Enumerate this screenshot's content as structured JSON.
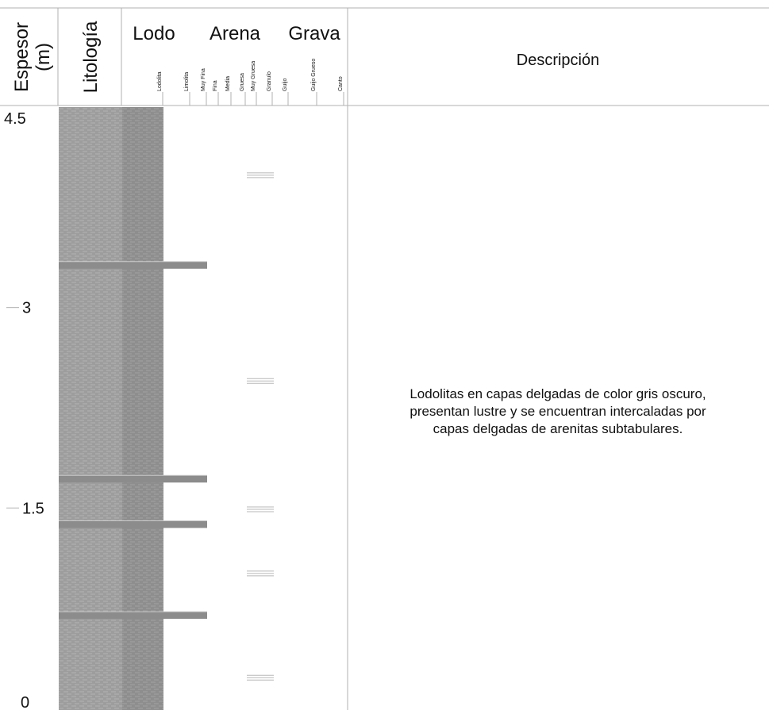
{
  "header": {
    "thickness_label": "Espesor",
    "thickness_unit": "(m)",
    "lithology_label": "Litología",
    "grain_groups": [
      "Lodo",
      "Arena",
      "Grava"
    ],
    "grain_ticks": [
      "Lodolita",
      "Limolita",
      "Muy Fina",
      "Fina",
      "Media",
      "Gruesa",
      "Muy Gruesa",
      "Granulo",
      "Guijo",
      "Guijo Grueso",
      "Canto"
    ],
    "description_label": "Descripción"
  },
  "scale": {
    "top_label": "4.5",
    "ticks": [
      {
        "value": 3,
        "label": "3"
      },
      {
        "value": 1.5,
        "label": "1.5"
      },
      {
        "value": 0,
        "label": "0"
      }
    ]
  },
  "sandstone_beds": [
    {
      "depth_m": 3.32,
      "grain": "Muy Fina"
    },
    {
      "depth_m": 1.72,
      "grain": "Muy Fina"
    },
    {
      "depth_m": 1.38,
      "grain": "Muy Fina"
    },
    {
      "depth_m": 0.7,
      "grain": "Muy Fina"
    }
  ],
  "structure_symbols": [
    {
      "depth_m": 3.99,
      "name": "parallel-lamination"
    },
    {
      "depth_m": 2.45,
      "name": "parallel-lamination"
    },
    {
      "depth_m": 1.49,
      "name": "parallel-lamination"
    },
    {
      "depth_m": 1.01,
      "name": "parallel-lamination"
    },
    {
      "depth_m": 0.23,
      "name": "parallel-lamination"
    }
  ],
  "description": {
    "lines": [
      "Lodolitas en capas delgadas de color gris oscuro,",
      "presentan lustre y se encuentran intercaladas por",
      "capas delgadas de arenitas subtabulares."
    ]
  },
  "colors": {
    "mud_fill": "#9a9a9a",
    "sand_fill": "#8c8c8c",
    "grid": "#b0b0b0"
  }
}
